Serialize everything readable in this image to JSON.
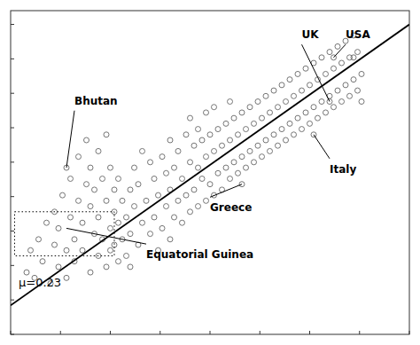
{
  "chart_data": {
    "type": "scatter",
    "series": [
      {
        "type": "scatter",
        "color": "#666666",
        "marker": "open-circle",
        "x": [
          0.04,
          0.05,
          0.06,
          0.07,
          0.08,
          0.09,
          0.1,
          0.11,
          0.11,
          0.12,
          0.12,
          0.13,
          0.14,
          0.14,
          0.15,
          0.15,
          0.16,
          0.16,
          0.17,
          0.17,
          0.18,
          0.18,
          0.19,
          0.19,
          0.2,
          0.2,
          0.2,
          0.21,
          0.21,
          0.22,
          0.22,
          0.22,
          0.23,
          0.23,
          0.24,
          0.24,
          0.24,
          0.25,
          0.25,
          0.25,
          0.26,
          0.26,
          0.26,
          0.27,
          0.27,
          0.27,
          0.28,
          0.28,
          0.29,
          0.29,
          0.3,
          0.3,
          0.3,
          0.31,
          0.31,
          0.32,
          0.32,
          0.33,
          0.33,
          0.34,
          0.35,
          0.35,
          0.36,
          0.36,
          0.37,
          0.37,
          0.38,
          0.38,
          0.39,
          0.39,
          0.4,
          0.4,
          0.4,
          0.41,
          0.41,
          0.42,
          0.42,
          0.43,
          0.43,
          0.44,
          0.44,
          0.45,
          0.45,
          0.45,
          0.46,
          0.46,
          0.47,
          0.47,
          0.47,
          0.48,
          0.48,
          0.49,
          0.49,
          0.49,
          0.5,
          0.5,
          0.51,
          0.51,
          0.51,
          0.52,
          0.52,
          0.53,
          0.53,
          0.54,
          0.54,
          0.55,
          0.55,
          0.55,
          0.56,
          0.56,
          0.57,
          0.57,
          0.58,
          0.58,
          0.59,
          0.59,
          0.6,
          0.6,
          0.61,
          0.61,
          0.62,
          0.62,
          0.63,
          0.63,
          0.64,
          0.64,
          0.65,
          0.65,
          0.66,
          0.66,
          0.67,
          0.67,
          0.68,
          0.68,
          0.69,
          0.69,
          0.7,
          0.7,
          0.71,
          0.71,
          0.72,
          0.72,
          0.73,
          0.73,
          0.74,
          0.74,
          0.75,
          0.75,
          0.76,
          0.76,
          0.77,
          0.77,
          0.78,
          0.78,
          0.79,
          0.79,
          0.8,
          0.8,
          0.81,
          0.81,
          0.82,
          0.82,
          0.83,
          0.83,
          0.84,
          0.84,
          0.85,
          0.85,
          0.86,
          0.86,
          0.87,
          0.87,
          0.88,
          0.88,
          0.14,
          0.58,
          0.76,
          0.8,
          0.81,
          0.86
        ],
        "values": [
          0.1,
          0.18,
          0.08,
          0.22,
          0.14,
          0.28,
          0.06,
          0.2,
          0.32,
          0.12,
          0.26,
          0.38,
          0.18,
          0.08,
          0.3,
          0.44,
          0.22,
          0.14,
          0.36,
          0.52,
          0.28,
          0.18,
          0.42,
          0.58,
          0.1,
          0.34,
          0.48,
          0.24,
          0.4,
          0.16,
          0.3,
          0.54,
          0.22,
          0.44,
          0.12,
          0.36,
          0.6,
          0.26,
          0.18,
          0.48,
          0.32,
          0.2,
          0.4,
          0.14,
          0.28,
          0.44,
          0.22,
          0.36,
          0.16,
          0.3,
          0.24,
          0.4,
          0.12,
          0.34,
          0.48,
          0.2,
          0.42,
          0.28,
          0.54,
          0.36,
          0.24,
          0.5,
          0.3,
          0.44,
          0.18,
          0.38,
          0.26,
          0.52,
          0.34,
          0.46,
          0.22,
          0.4,
          0.58,
          0.3,
          0.48,
          0.36,
          0.54,
          0.28,
          0.44,
          0.6,
          0.38,
          0.32,
          0.5,
          0.66,
          0.4,
          0.56,
          0.34,
          0.48,
          0.62,
          0.44,
          0.58,
          0.36,
          0.52,
          0.68,
          0.42,
          0.6,
          0.38,
          0.54,
          0.7,
          0.46,
          0.62,
          0.4,
          0.56,
          0.48,
          0.64,
          0.44,
          0.58,
          0.72,
          0.5,
          0.66,
          0.46,
          0.6,
          0.52,
          0.68,
          0.48,
          0.62,
          0.54,
          0.7,
          0.5,
          0.64,
          0.56,
          0.72,
          0.52,
          0.66,
          0.58,
          0.74,
          0.54,
          0.68,
          0.6,
          0.76,
          0.56,
          0.7,
          0.62,
          0.78,
          0.58,
          0.72,
          0.64,
          0.8,
          0.6,
          0.74,
          0.66,
          0.82,
          0.62,
          0.76,
          0.68,
          0.84,
          0.64,
          0.78,
          0.7,
          0.86,
          0.66,
          0.8,
          0.72,
          0.88,
          0.68,
          0.82,
          0.74,
          0.9,
          0.7,
          0.84,
          0.76,
          0.92,
          0.72,
          0.86,
          0.78,
          0.94,
          0.74,
          0.88,
          0.8,
          0.96,
          0.76,
          0.9,
          0.82,
          0.72,
          0.48,
          0.42,
          0.6,
          0.72,
          0.88,
          0.88
        ]
      },
      {
        "type": "line",
        "color": "#000000",
        "line_style": "solid",
        "x": [
          0.0,
          1.0
        ],
        "values": [
          -0.02,
          1.0
        ]
      }
    ],
    "annotations": [
      {
        "text": "Bhutan",
        "x": 0.14,
        "y": 0.48,
        "text_x": 0.16,
        "text_y": 0.7
      },
      {
        "text": "Greece",
        "x": 0.58,
        "y": 0.42,
        "text_x": 0.5,
        "text_y": 0.36
      },
      {
        "text": "Italy",
        "x": 0.76,
        "y": 0.6,
        "text_x": 0.8,
        "text_y": 0.5
      },
      {
        "text": "UK",
        "x": 0.8,
        "y": 0.72,
        "text_x": 0.73,
        "text_y": 0.94
      },
      {
        "text": "USA",
        "x": 0.81,
        "y": 0.88,
        "text_x": 0.84,
        "text_y": 0.94
      },
      {
        "text": "Equatorial Guinea",
        "x": 0.14,
        "y": 0.26,
        "text_x": 0.34,
        "text_y": 0.19
      }
    ],
    "notes": [
      {
        "text": "μ=0.23",
        "x": 0.02,
        "y": 0.04
      }
    ],
    "region": {
      "x": 0.01,
      "y": 0.16,
      "width": 0.25,
      "height": 0.16,
      "line_style": "dotted"
    },
    "xlim": [
      0.0,
      1.0
    ],
    "ylim": [
      -0.125,
      1.05
    ],
    "xticks": [
      0,
      0.125,
      0.25,
      0.375,
      0.5,
      0.625,
      0.75,
      0.875,
      1
    ],
    "yticks": [
      -0.125,
      0,
      0.125,
      0.25,
      0.375,
      0.5,
      0.625,
      0.75,
      0.875,
      1
    ],
    "tick_labels": false,
    "grid": false
  }
}
